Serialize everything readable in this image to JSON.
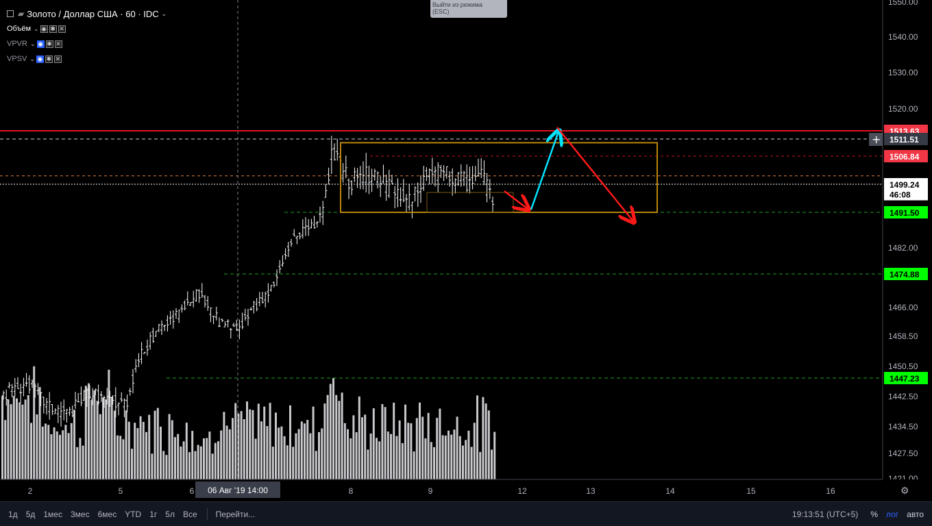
{
  "legend": {
    "symbol": "Золото / Доллар США · 60 · IDC",
    "indicators": [
      "Объём",
      "VPVR",
      "VPSV"
    ]
  },
  "esc_hint": {
    "line1": "Выйти из режима",
    "line2": "(ESC)"
  },
  "chart_data": {
    "type": "candlestick",
    "y_axis_ticks": [
      "1550.00",
      "1540.00",
      "1530.00",
      "1520.00",
      "1482.00",
      "1466.00",
      "1458.50",
      "1450.50",
      "1442.50",
      "1434.50",
      "1427.50",
      "1421.00"
    ],
    "x_axis_ticks": [
      "2",
      "5",
      "6",
      "8",
      "9",
      "12",
      "13",
      "14",
      "15",
      "16"
    ],
    "crosshair_label": "06 Авг '19   14:00",
    "price_labels": [
      {
        "text": "1513.63",
        "color": "#f23645"
      },
      {
        "text": "1511.51",
        "color": "#363a45"
      },
      {
        "text": "1506.84",
        "color": "#f23645"
      },
      {
        "text": "1499.24",
        "color": "#ffffff"
      },
      {
        "text": "46:08",
        "color": "#ffffff"
      },
      {
        "text": "1491.50",
        "color": "#00ff00"
      },
      {
        "text": "1474.88",
        "color": "#00ff00"
      },
      {
        "text": "1447.23",
        "color": "#00ff00"
      }
    ],
    "horizontal_levels": [
      1513.63,
      1511.51,
      1506.84,
      1501.5,
      1499.24,
      1491.5,
      1474.88,
      1447.23
    ],
    "box": {
      "from": "8",
      "to": "14",
      "high": 1510.5,
      "low": 1491.5
    }
  },
  "bottom_bar": {
    "ranges": [
      "1д",
      "5д",
      "1мес",
      "3мес",
      "6мес",
      "YTD",
      "1г",
      "5л",
      "Все"
    ],
    "goto": "Перейти...",
    "time": "19:13:51 (UTC+5)",
    "percent": "%",
    "log": "лог",
    "auto": "авто"
  },
  "colors": {
    "accent": "#2962ff",
    "red": "#f23645",
    "green": "#00ff00",
    "cyan": "#00e5ff",
    "box": "#b8860b"
  }
}
